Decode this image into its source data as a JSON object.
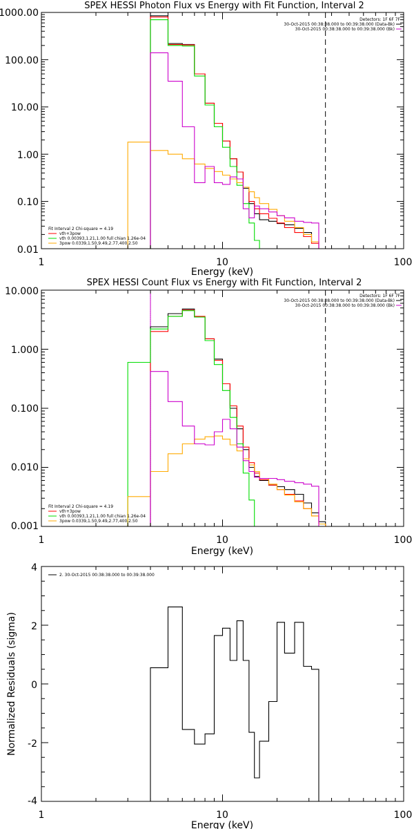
{
  "panels": [
    {
      "title": "SPEX HESSI Photon Flux vs Energy with Fit Function, Interval 2",
      "xlabel": "Energy (keV)",
      "ylabel": "",
      "xticks": [
        "1",
        "10",
        "100"
      ],
      "yticks": [
        "1000.00",
        "100.00",
        "10.00",
        "1.00",
        "0.10",
        "0.01"
      ],
      "header": [
        "Detectors: 1F 6F 7F",
        "30-Oct-2015 00:38:38.000 to 00:39:38.000 (Data-Bk)",
        "30-Oct-2015 00:38:38.000 to 00:39:38.000 (Bk)"
      ],
      "legend": [
        "Fit Interval 2   Chi-square = 4.19",
        "vth+3pow",
        "vth 0.00393,1.21,1.00  full chian 1.26e-04",
        "3pow 0.0339,1.50,9.49,2.77,400,2.50"
      ]
    },
    {
      "title": "SPEX HESSI Count Flux vs Energy with Fit Function, Interval 2",
      "xlabel": "Energy (keV)",
      "ylabel": "",
      "xticks": [
        "1",
        "10",
        "100"
      ],
      "yticks": [
        "10.000",
        "1.000",
        "0.100",
        "0.010",
        "0.001"
      ],
      "header": [
        "Detectors: 1F 6F 7F",
        "30-Oct-2015 00:38:38.000 to 00:39:38.000 (Data-Bk)",
        "30-Oct-2015 00:38:38.000 to 00:39:38.000 (Bk)"
      ],
      "legend": [
        "Fit Interval 2   Chi-square = 4.19",
        "vth+3pow",
        "vth 0.00393,1.21,1.00  full chian 1.26e-04",
        "3pow 0.0339,1.50,9.49,2.77,400,2.50"
      ]
    },
    {
      "title": "",
      "xlabel": "Energy (keV)",
      "ylabel": "Normalized Residuals (sigma)",
      "xticks": [
        "1",
        "10",
        "100"
      ],
      "yticks": [
        "4",
        "2",
        "0",
        "-2",
        "-4"
      ],
      "header": [],
      "legend": [
        "2. 30-Oct-2015 00:38:38.000 to 00:39:38.000"
      ]
    }
  ],
  "chart_data": [
    {
      "type": "line",
      "title": "SPEX HESSI Photon Flux vs Energy with Fit Function, Interval 2",
      "xlabel": "Energy (keV)",
      "xscale": "log",
      "yscale": "log",
      "xlim": [
        1,
        100
      ],
      "ylim": [
        0.01,
        1000
      ],
      "legend_position": "top-right and bottom-left",
      "step_edges": [
        3.0,
        4.0,
        5.0,
        6.0,
        7.0,
        8.0,
        9.0,
        10.0,
        11.0,
        12.0,
        13.0,
        14.0,
        15.0,
        16.0,
        18.0,
        20.0,
        22.0,
        25.0,
        28.0,
        31.0,
        34.0,
        37.0
      ],
      "vlines": [
        {
          "x": 4.0,
          "color": "#cc00cc",
          "style": "solid"
        },
        {
          "x": 37.0,
          "color": "#000000",
          "style": "dashed"
        }
      ],
      "series": [
        {
          "name": "Data-Bk",
          "color": "#000000",
          "values": [
            null,
            850,
            220,
            210,
            50,
            12,
            4.5,
            1.9,
            0.8,
            0.42,
            0.19,
            0.09,
            0.055,
            0.041,
            0.038,
            0.034,
            0.032,
            0.027,
            0.022,
            0.014,
            0.01
          ]
        },
        {
          "name": "vth+3pow",
          "color": "#ff0000",
          "values": [
            null,
            800,
            210,
            205,
            50,
            12,
            4.5,
            1.9,
            0.8,
            0.42,
            0.2,
            0.1,
            0.07,
            0.055,
            0.044,
            0.035,
            0.028,
            0.022,
            0.018,
            0.013,
            0.01
          ]
        },
        {
          "name": "vth",
          "color": "#00dd00",
          "values": [
            null,
            700,
            200,
            195,
            45,
            11,
            3.8,
            1.4,
            0.55,
            0.22,
            0.09,
            0.035,
            0.015,
            0.01,
            null,
            null,
            null,
            null,
            null,
            null,
            null
          ]
        },
        {
          "name": "3pow",
          "color": "#ffaa00",
          "values": [
            1.8,
            1.2,
            1.0,
            0.8,
            0.62,
            0.5,
            0.43,
            0.36,
            0.3,
            0.25,
            0.2,
            0.16,
            0.12,
            0.09,
            0.068,
            0.05,
            0.038,
            0.028,
            0.02,
            0.014,
            0.01
          ]
        },
        {
          "name": "Bk",
          "color": "#cc00cc",
          "values": [
            null,
            140,
            35,
            3.8,
            0.25,
            0.55,
            0.25,
            0.23,
            0.33,
            0.3,
            0.07,
            0.045,
            0.08,
            0.07,
            0.06,
            0.05,
            0.045,
            0.038,
            0.036,
            0.035,
            null
          ]
        }
      ]
    },
    {
      "type": "line",
      "title": "SPEX HESSI Count Flux vs Energy with Fit Function, Interval 2",
      "xlabel": "Energy (keV)",
      "xscale": "log",
      "yscale": "log",
      "xlim": [
        1,
        100
      ],
      "ylim": [
        0.001,
        10
      ],
      "legend_position": "top-right and bottom-left",
      "step_edges": [
        3.0,
        4.0,
        5.0,
        6.0,
        7.0,
        8.0,
        9.0,
        10.0,
        11.0,
        12.0,
        13.0,
        14.0,
        15.0,
        16.0,
        18.0,
        20.0,
        22.0,
        25.0,
        28.0,
        31.0,
        34.0,
        37.0,
        40.0
      ],
      "vlines": [
        {
          "x": 4.0,
          "color": "#000000",
          "style": "dotted"
        },
        {
          "x": 4.0,
          "color": "#cc00cc",
          "style": "solid"
        },
        {
          "x": 37.0,
          "color": "#000000",
          "style": "dashed"
        }
      ],
      "series": [
        {
          "name": "Data-Bk",
          "color": "#000000",
          "values": [
            null,
            2.4,
            4.0,
            4.8,
            3.5,
            1.5,
            0.68,
            0.26,
            0.1,
            0.045,
            0.02,
            0.01,
            0.007,
            0.006,
            0.005,
            0.0047,
            0.0042,
            0.0035,
            0.0025,
            0.0017,
            0.0012,
            null
          ]
        },
        {
          "name": "vth+3pow",
          "color": "#ff0000",
          "values": [
            null,
            2.0,
            3.6,
            4.6,
            3.6,
            1.5,
            0.65,
            0.26,
            0.11,
            0.05,
            0.022,
            0.012,
            0.008,
            0.0062,
            0.005,
            0.0042,
            0.0035,
            0.0027,
            0.002,
            0.0015,
            0.0011,
            null
          ]
        },
        {
          "name": "vth",
          "color": "#00dd00",
          "values": [
            0.6,
            2.2,
            3.6,
            4.5,
            3.5,
            1.4,
            0.55,
            0.2,
            0.07,
            0.025,
            0.008,
            0.0028,
            0.001,
            null,
            null,
            null,
            null,
            null,
            null,
            null,
            null,
            null
          ]
        },
        {
          "name": "3pow",
          "color": "#ffaa00",
          "values": [
            0.0032,
            0.0085,
            0.017,
            0.025,
            0.03,
            0.033,
            0.034,
            0.03,
            0.024,
            0.019,
            0.014,
            0.011,
            0.0085,
            0.0065,
            0.0052,
            0.0042,
            0.0034,
            0.0026,
            0.002,
            0.0015,
            0.0011,
            0.001
          ]
        },
        {
          "name": "Bk",
          "color": "#cc00cc",
          "values": [
            null,
            0.42,
            0.13,
            0.05,
            0.025,
            0.024,
            0.04,
            0.065,
            0.045,
            0.022,
            0.013,
            0.0085,
            0.0068,
            0.0065,
            0.0065,
            0.0062,
            0.0058,
            0.0055,
            0.0052,
            0.0048,
            null,
            null
          ]
        }
      ]
    },
    {
      "type": "line",
      "title": "",
      "xlabel": "Energy (keV)",
      "ylabel": "Normalized Residuals (sigma)",
      "xscale": "log",
      "xlim": [
        1,
        100
      ],
      "ylim": [
        -4,
        4
      ],
      "step_edges": [
        4.0,
        5.0,
        6.0,
        7.0,
        8.0,
        9.0,
        10.0,
        11.0,
        12.0,
        13.0,
        14.0,
        15.0,
        16.0,
        18.0,
        20.0,
        22.0,
        25.0,
        28.0,
        31.0,
        34.0,
        37.0
      ],
      "series": [
        {
          "name": "2. 30-Oct-2015 00:38:38.000 to 00:39:38.000",
          "color": "#000000",
          "values": [
            0.55,
            2.62,
            -1.55,
            -2.05,
            -1.7,
            1.65,
            1.9,
            0.8,
            2.15,
            0.8,
            -1.65,
            -3.2,
            -1.95,
            -0.6,
            2.1,
            1.05,
            2.1,
            0.6,
            0.5,
            null
          ]
        }
      ]
    }
  ]
}
